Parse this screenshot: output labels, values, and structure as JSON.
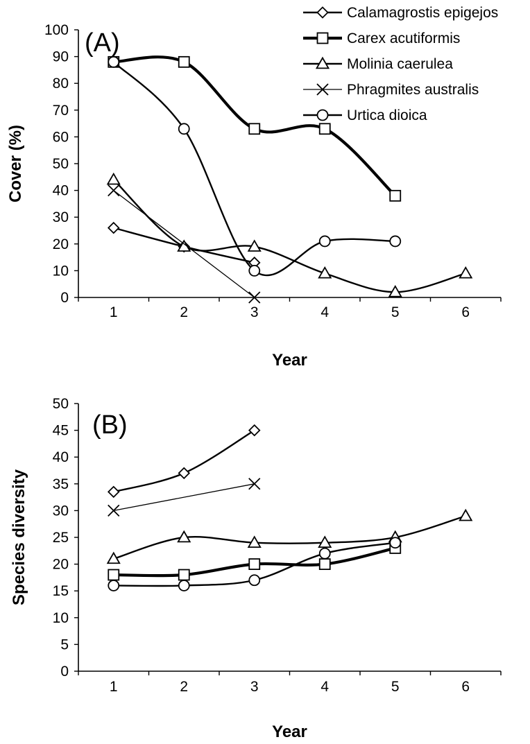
{
  "colors": {
    "ink": "#000000",
    "marker_fill": "#ffffff",
    "background": "#ffffff"
  },
  "legend": [
    {
      "name": "Calamagrostis epigejos",
      "marker": "diamond",
      "line": "medium"
    },
    {
      "name": "Carex acutiformis",
      "marker": "square",
      "line": "thick"
    },
    {
      "name": "Molinia caerulea",
      "marker": "triangle",
      "line": "medium"
    },
    {
      "name": "Phragmites australis",
      "marker": "x",
      "line": "thin"
    },
    {
      "name": "Urtica dioica",
      "marker": "circle",
      "line": "medium"
    }
  ],
  "chart_data": [
    {
      "type": "line",
      "panel_label": "(A)",
      "xlabel": "Year",
      "ylabel": "Cover (%)",
      "xlim": [
        0.5,
        6.5
      ],
      "ylim": [
        0,
        100
      ],
      "x_ticks": [
        "1",
        "2",
        "3",
        "4",
        "5",
        "6"
      ],
      "y_ticks": [
        "0",
        "10",
        "20",
        "30",
        "40",
        "50",
        "60",
        "70",
        "80",
        "90",
        "100"
      ],
      "smoothed": true,
      "series": [
        {
          "name": "Calamagrostis epigejos",
          "x": [
            1,
            2,
            3
          ],
          "values": [
            26,
            19,
            13
          ]
        },
        {
          "name": "Carex acutiformis",
          "x": [
            1,
            2,
            3,
            4,
            5
          ],
          "values": [
            88,
            88,
            63,
            63,
            38
          ]
        },
        {
          "name": "Molinia caerulea",
          "x": [
            1,
            2,
            3,
            4,
            5,
            6
          ],
          "values": [
            44,
            19,
            19,
            9,
            2,
            9
          ]
        },
        {
          "name": "Phragmites australis",
          "x": [
            1,
            3
          ],
          "values": [
            40,
            0
          ]
        },
        {
          "name": "Urtica dioica",
          "x": [
            1,
            2,
            3,
            4,
            5
          ],
          "values": [
            88,
            63,
            10,
            21,
            21
          ]
        }
      ]
    },
    {
      "type": "line",
      "panel_label": "(B)",
      "xlabel": "Year",
      "ylabel": "Species diversity",
      "xlim": [
        0.5,
        6.5
      ],
      "ylim": [
        0,
        50
      ],
      "x_ticks": [
        "1",
        "2",
        "3",
        "4",
        "5",
        "6"
      ],
      "y_ticks": [
        "0",
        "5",
        "10",
        "15",
        "20",
        "25",
        "30",
        "35",
        "40",
        "45",
        "50"
      ],
      "smoothed": true,
      "series": [
        {
          "name": "Calamagrostis epigejos",
          "x": [
            1,
            2,
            3
          ],
          "values": [
            33.5,
            37,
            45
          ]
        },
        {
          "name": "Carex acutiformis",
          "x": [
            1,
            2,
            3,
            4,
            5
          ],
          "values": [
            18,
            18,
            20,
            20,
            23
          ]
        },
        {
          "name": "Molinia caerulea",
          "x": [
            1,
            2,
            3,
            4,
            5,
            6
          ],
          "values": [
            21,
            25,
            24,
            24,
            25,
            29
          ]
        },
        {
          "name": "Phragmites australis",
          "x": [
            1,
            3
          ],
          "values": [
            30,
            35
          ]
        },
        {
          "name": "Urtica dioica",
          "x": [
            1,
            2,
            3,
            4,
            5
          ],
          "values": [
            16,
            16,
            17,
            22,
            24
          ]
        }
      ]
    }
  ]
}
